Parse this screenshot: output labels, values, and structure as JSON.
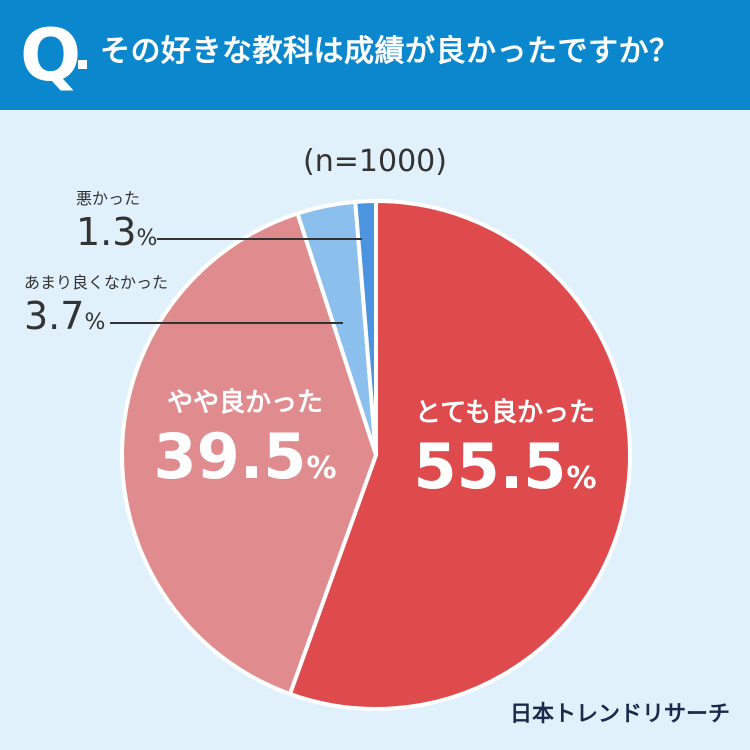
{
  "header": {
    "q_mark": "Q",
    "question": "その好きな教科は成績が良かったですか？"
  },
  "sample_label": "(n=1000)",
  "brand": "日本トレンドリサーチ",
  "chart_data": {
    "type": "pie",
    "title": "",
    "categories": [
      "とても良かった",
      "やや良かった",
      "あまり良くなかった",
      "悪かった"
    ],
    "values": [
      55.5,
      39.5,
      3.7,
      1.3
    ],
    "value_labels": [
      "55.5",
      "39.5",
      "3.7",
      "1.3"
    ],
    "unit": "%",
    "colors": [
      "#df4a4d",
      "#e08c8e",
      "#8bbfee",
      "#4a94e0"
    ],
    "start_angle": "12 o'clock",
    "direction": "clockwise",
    "legend": "none"
  }
}
